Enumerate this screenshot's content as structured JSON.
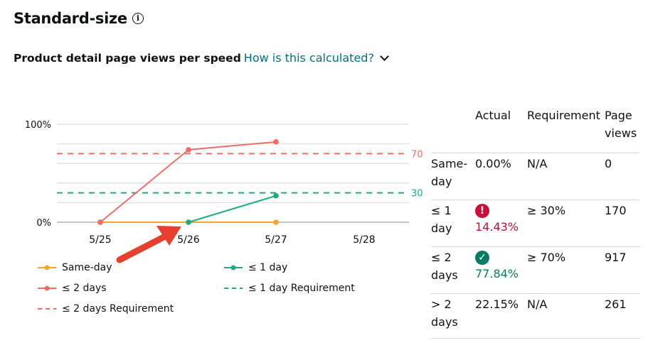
{
  "header": {
    "title": "Standard-size",
    "info_icon": "i"
  },
  "subheader": {
    "label": "Product detail page views per speed",
    "link": "How is this calculated?"
  },
  "colors": {
    "same_day": "#f5a623",
    "one_day": "#1faa84",
    "two_days": "#f26b6b",
    "link": "#007185",
    "error": "#cc0c39",
    "success": "#067d62"
  },
  "chart_data": {
    "type": "line",
    "x": [
      "5/25",
      "5/26",
      "5/27",
      "5/28"
    ],
    "y_ticks": [
      "0%",
      "100%"
    ],
    "ylim": [
      0,
      100
    ],
    "series": [
      {
        "name": "Same-day",
        "values": [
          0,
          0,
          0,
          null
        ],
        "color": "#f5a623"
      },
      {
        "name": "≤ 1 day",
        "values": [
          null,
          0,
          27,
          null
        ],
        "color": "#1faa84"
      },
      {
        "name": "≤ 2 days",
        "values": [
          0,
          74,
          82,
          null
        ],
        "color": "#f26b6b"
      }
    ],
    "thresholds": [
      {
        "name": "≤ 1 day Requirement",
        "value": 30,
        "label": "30",
        "color": "#1faa84"
      },
      {
        "name": "≤ 2 days Requirement",
        "value": 70,
        "label": "70",
        "color": "#f26b6b"
      }
    ],
    "grid": true,
    "legend_position": "bottom"
  },
  "legend": {
    "same_day": "Same-day",
    "one_day": "≤ 1 day",
    "two_days": "≤ 2 days",
    "one_day_req": "≤ 1 day Requirement",
    "two_days_req": "≤ 2 days Requirement"
  },
  "table": {
    "headers": {
      "actual": "Actual",
      "requirement": "Requirement",
      "views_1": "Page",
      "views_2": "views"
    },
    "rows": [
      {
        "speed_1": "Same-",
        "speed_2": "day",
        "actual": "0.00%",
        "requirement": "N/A",
        "views": "0"
      },
      {
        "speed_1": "≤ 1",
        "speed_2": "day",
        "actual": "14.43%",
        "requirement": "≥ 30%",
        "views": "170",
        "status": "!"
      },
      {
        "speed_1": "≤ 2",
        "speed_2": "days",
        "actual": "77.84%",
        "requirement": "≥ 70%",
        "views": "917",
        "status": "✓"
      },
      {
        "speed_1": "> 2",
        "speed_2": "days",
        "actual": "22.15%",
        "requirement": "N/A",
        "views": "261"
      }
    ]
  }
}
